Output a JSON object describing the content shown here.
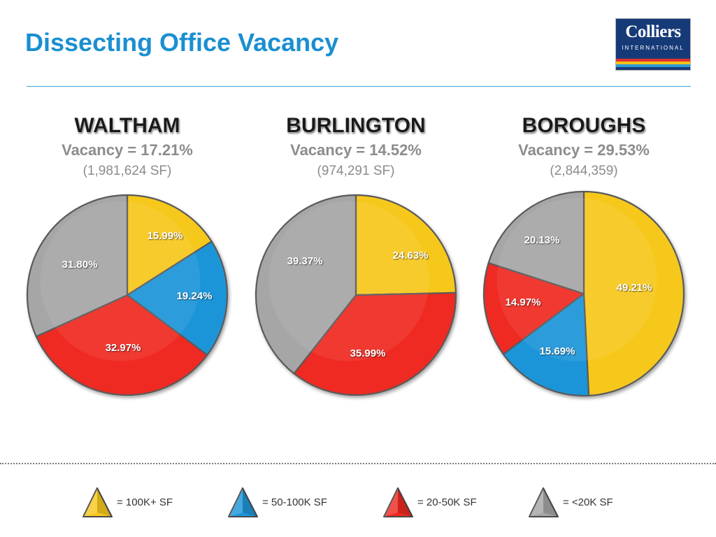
{
  "title": "Dissecting Office Vacancy",
  "logo": {
    "name": "Colliers",
    "sub": "INTERNATIONAL",
    "stripe_colors": [
      "#e0302f",
      "#f3c21a",
      "#2e9bd6",
      "#163a78"
    ]
  },
  "colors": {
    "100K+ SF": "#f7c81f",
    "50-100K SF": "#1f95d8",
    "20-50K SF": "#ee2a22",
    "<20K SF": "#a6a6a6",
    "title": "#1a8fd1"
  },
  "chart_data": [
    {
      "type": "pie",
      "title": "WALTHAM",
      "subtitle": "Vacancy = 17.21%",
      "note": "(1,981,624 SF)",
      "slices": [
        {
          "label": "100K+ SF",
          "value": 15.99,
          "display": "15.99%"
        },
        {
          "label": "50-100K SF",
          "value": 19.24,
          "display": "19.24%"
        },
        {
          "label": "20-50K SF",
          "value": 32.97,
          "display": "32.97%"
        },
        {
          "label": "<20K SF",
          "value": 31.8,
          "display": "31.80%"
        }
      ]
    },
    {
      "type": "pie",
      "title": "BURLINGTON",
      "subtitle": "Vacancy = 14.52%",
      "note": "(974,291 SF)",
      "slices": [
        {
          "label": "100K+ SF",
          "value": 24.63,
          "display": "24.63%"
        },
        {
          "label": "20-50K SF",
          "value": 35.99,
          "display": "35.99%"
        },
        {
          "label": "<20K SF",
          "value": 39.37,
          "display": "39.37%"
        }
      ]
    },
    {
      "type": "pie",
      "title": "BOROUGHS",
      "subtitle": "Vacancy = 29.53%",
      "note": "(2,844,359)",
      "slices": [
        {
          "label": "100K+ SF",
          "value": 49.21,
          "display": "49.21%"
        },
        {
          "label": "50-100K SF",
          "value": 15.69,
          "display": "15.69%"
        },
        {
          "label": "20-50K SF",
          "value": 14.97,
          "display": "14.97%"
        },
        {
          "label": "<20K SF",
          "value": 20.13,
          "display": "20.13%"
        }
      ]
    }
  ],
  "legend": [
    {
      "key": "100K+ SF",
      "label": "= 100K+ SF"
    },
    {
      "key": "50-100K SF",
      "label": "= 50-100K SF"
    },
    {
      "key": "20-50K SF",
      "label": "= 20-50K SF"
    },
    {
      "key": "<20K SF",
      "label": "= <20K SF"
    }
  ]
}
